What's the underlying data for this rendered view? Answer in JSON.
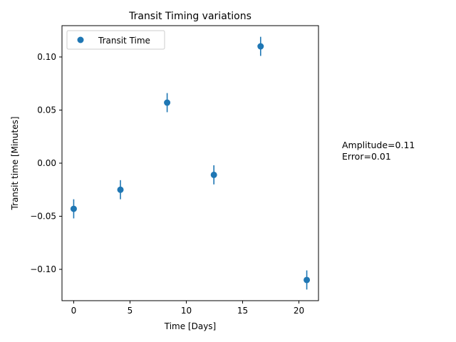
{
  "chart_data": {
    "type": "scatter",
    "title": "Transit Timing variations",
    "xlabel": "Time [Days]",
    "ylabel": "Transit time [Minutes]",
    "xlim": [
      -1.04,
      21.74
    ],
    "ylim": [
      -0.1295,
      0.1295
    ],
    "xticks": [
      0,
      5,
      10,
      15,
      20
    ],
    "xtick_labels": [
      "0",
      "5",
      "10",
      "15",
      "20"
    ],
    "yticks": [
      -0.1,
      -0.05,
      0.0,
      0.05,
      0.1
    ],
    "ytick_labels": [
      "−0.10",
      "−0.05",
      "0.00",
      "0.05",
      "0.10"
    ],
    "grid": false,
    "legend_position": "upper-left",
    "series": [
      {
        "name": "Transit Time",
        "color": "#1f77b4",
        "x": [
          0.0,
          4.15,
          8.3,
          12.45,
          16.6,
          20.7
        ],
        "y": [
          -0.043,
          -0.025,
          0.057,
          -0.011,
          0.11,
          -0.11
        ],
        "yerr": [
          0.009,
          0.009,
          0.009,
          0.009,
          0.009,
          0.009
        ]
      }
    ],
    "annotations": [
      "Amplitude=0.11",
      "Error=0.01"
    ]
  }
}
